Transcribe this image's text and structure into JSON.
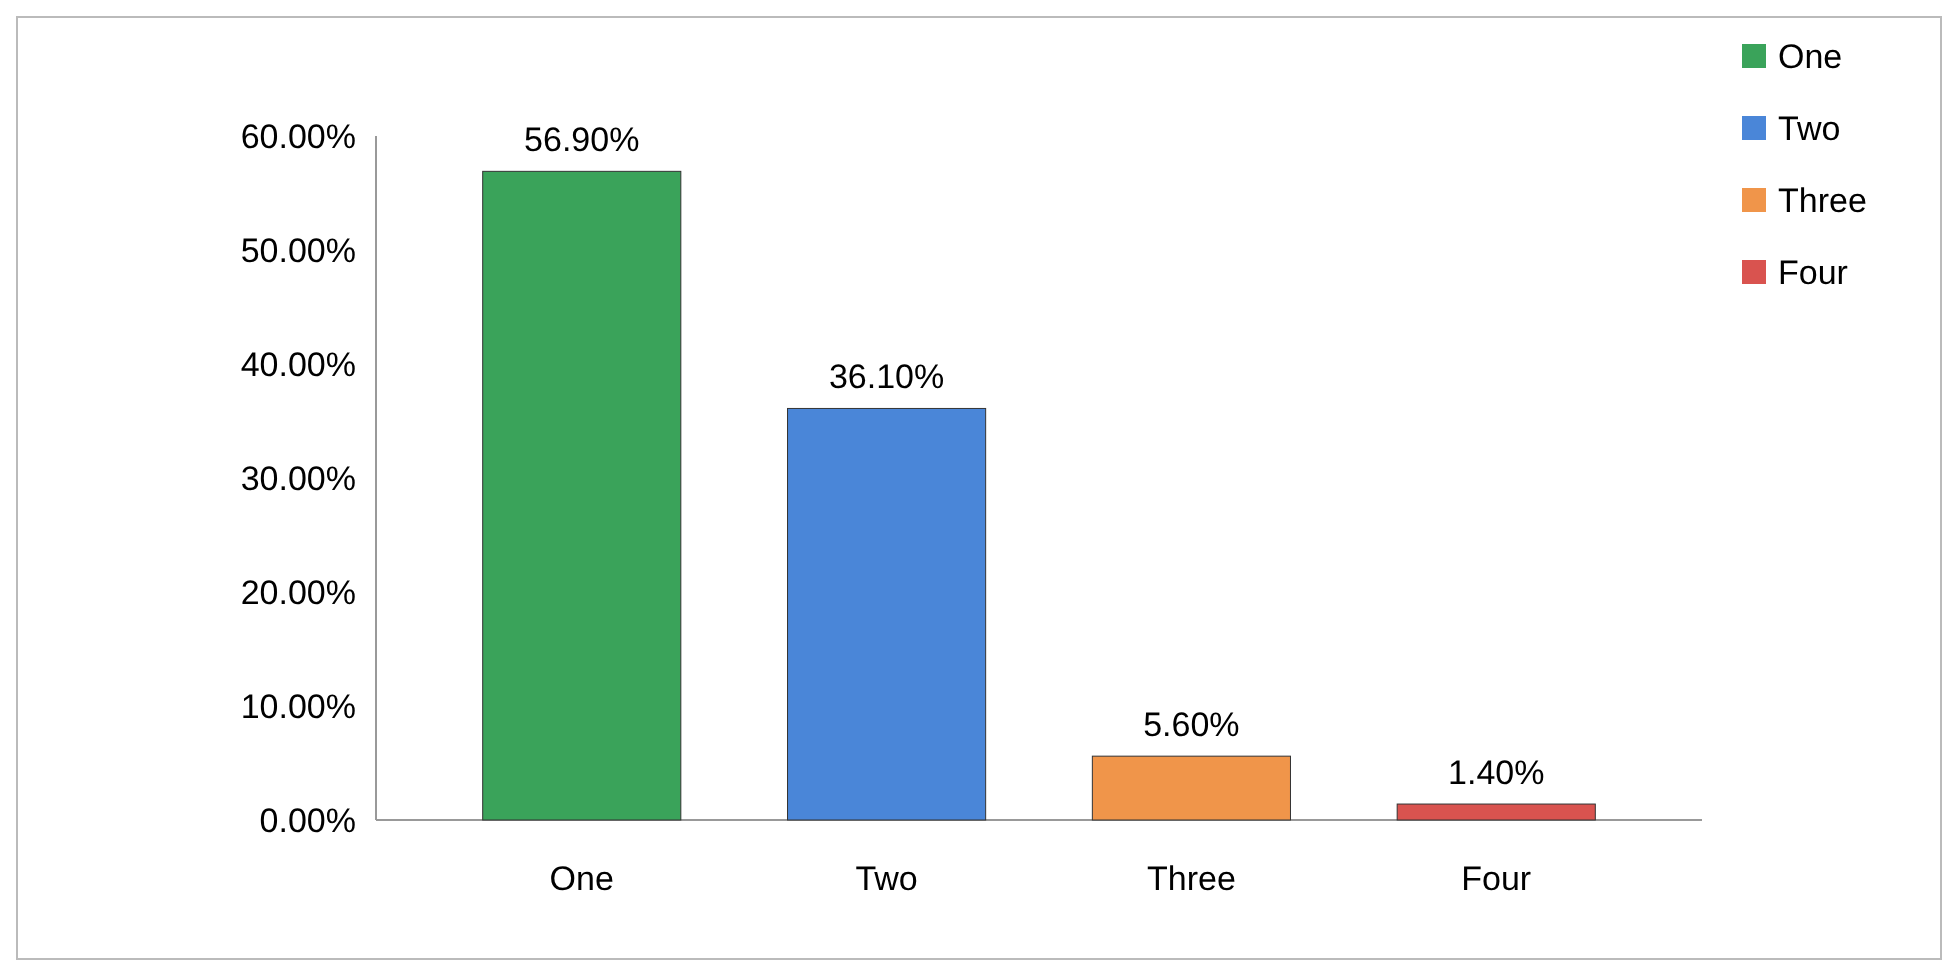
{
  "chart_data": {
    "type": "bar",
    "stacked": true,
    "categories": [
      "One",
      "Two",
      "Three",
      "Four"
    ],
    "series": [
      {
        "name": "One",
        "color": "#3aa35a",
        "values": [
          56.9,
          null,
          null,
          null
        ],
        "value_labels": [
          "56.90%",
          null,
          null,
          null
        ]
      },
      {
        "name": "Two",
        "color": "#4a86d8",
        "values": [
          null,
          36.1,
          null,
          null
        ],
        "value_labels": [
          null,
          "36.10%",
          null,
          null
        ]
      },
      {
        "name": "Three",
        "color": "#f0954a",
        "values": [
          null,
          null,
          5.6,
          null
        ],
        "value_labels": [
          null,
          null,
          "5.60%",
          null
        ]
      },
      {
        "name": "Four",
        "color": "#d9534f",
        "values": [
          null,
          null,
          null,
          1.4
        ],
        "value_labels": [
          null,
          null,
          null,
          "1.40%"
        ]
      }
    ],
    "ylim": [
      0,
      60
    ],
    "yticks": [
      {
        "value": 0,
        "label": "0.00%"
      },
      {
        "value": 10,
        "label": "10.00%"
      },
      {
        "value": 20,
        "label": "20.00%"
      },
      {
        "value": 30,
        "label": "30.00%"
      },
      {
        "value": 40,
        "label": "40.00%"
      },
      {
        "value": 50,
        "label": "50.00%"
      },
      {
        "value": 60,
        "label": "60.00%"
      }
    ],
    "legend": "top right"
  }
}
